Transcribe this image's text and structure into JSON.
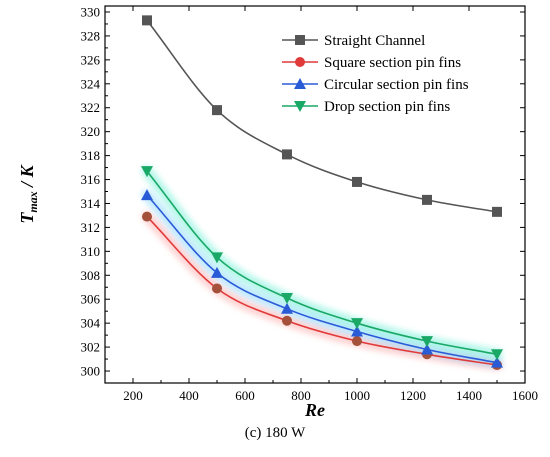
{
  "caption": "(c) 180 W",
  "chart_data": {
    "type": "line",
    "xlabel": "Re",
    "ylabel_main": "T",
    "ylabel_sub": "max",
    "ylabel_unit": " / K",
    "xlim": [
      100,
      1600
    ],
    "ylim": [
      299,
      330.5
    ],
    "x_ticks": [
      200,
      400,
      600,
      800,
      1000,
      1200,
      1400,
      1600
    ],
    "y_ticks": [
      300,
      302,
      304,
      306,
      308,
      310,
      312,
      314,
      316,
      318,
      320,
      322,
      324,
      326,
      328,
      330
    ],
    "x": [
      250,
      500,
      750,
      1000,
      1250,
      1500
    ],
    "legend_position": "top-right",
    "series": [
      {
        "name": "Straight Channel",
        "marker": "square",
        "color": "#555555",
        "values": [
          329.3,
          321.8,
          318.1,
          315.8,
          314.3,
          313.3
        ]
      },
      {
        "name": "Square section pin fins",
        "marker": "circle",
        "color": "#e03a3a",
        "values": [
          312.9,
          306.9,
          304.2,
          302.5,
          301.4,
          300.5
        ]
      },
      {
        "name": "Circular section pin fins",
        "marker": "triangle-up",
        "color": "#2a5bd7",
        "values": [
          314.7,
          308.2,
          305.2,
          303.3,
          301.8,
          300.7
        ]
      },
      {
        "name": "Drop section pin fins",
        "marker": "triangle-down",
        "color": "#1aa866",
        "values": [
          316.7,
          309.5,
          306.1,
          304.0,
          302.5,
          301.4
        ]
      }
    ]
  }
}
